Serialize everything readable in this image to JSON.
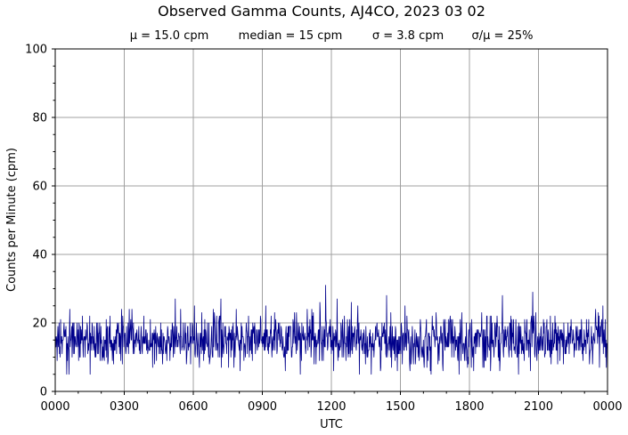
{
  "chart_data": {
    "type": "line",
    "title": "Observed Gamma Counts, AJ4CO, 2023 03 02",
    "stats": {
      "mean": "μ = 15.0 cpm",
      "median": "median = 15 cpm",
      "sigma": "σ = 3.8 cpm",
      "ratio": "σ/μ = 25%"
    },
    "xlabel": "UTC",
    "ylabel": "Counts per Minute (cpm)",
    "ylim": [
      0,
      100
    ],
    "xlim_minutes": [
      0,
      1440
    ],
    "x_ticks": [
      "0000",
      "0300",
      "0600",
      "0900",
      "1200",
      "1500",
      "1800",
      "2100",
      "0000"
    ],
    "y_ticks": [
      "0",
      "20",
      "40",
      "60",
      "80",
      "100"
    ],
    "grid": true,
    "series": [
      {
        "color": "#00008b",
        "sampling": "per minute",
        "mean": 15.0,
        "median": 15,
        "sigma": 3.8,
        "min": 5,
        "max": 31,
        "peaks": [
          {
            "x": "0712",
            "y": 27
          },
          {
            "x": "1145",
            "y": 31
          },
          {
            "x": "1215",
            "y": 27
          },
          {
            "x": "2045",
            "y": 29
          }
        ]
      }
    ]
  }
}
